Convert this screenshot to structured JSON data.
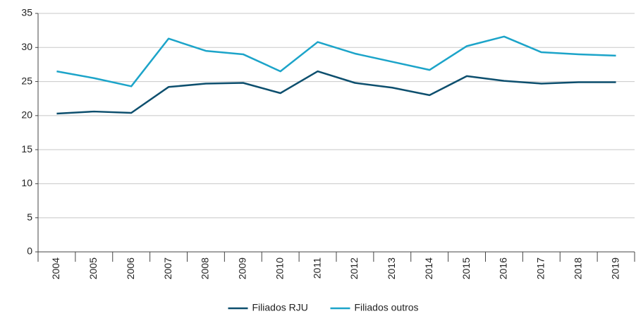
{
  "chart_data": {
    "type": "line",
    "categories": [
      "2004",
      "2005",
      "2006",
      "2007",
      "2008",
      "2009",
      "2010",
      "2011",
      "2012",
      "2013",
      "2014",
      "2015",
      "2016",
      "2017",
      "2018",
      "2019"
    ],
    "series": [
      {
        "name": "Filiados RJU",
        "color": "#0d4f6e",
        "values": [
          20.3,
          20.6,
          20.4,
          24.2,
          24.7,
          24.8,
          23.3,
          26.5,
          24.8,
          24.1,
          23.0,
          25.8,
          25.1,
          24.7,
          24.9,
          24.9
        ]
      },
      {
        "name": "Filiados outros",
        "color": "#1ca4c9",
        "values": [
          26.5,
          25.5,
          24.3,
          31.3,
          29.5,
          29.0,
          26.5,
          30.8,
          29.1,
          27.9,
          26.7,
          30.2,
          31.6,
          29.3,
          29.0,
          28.8
        ]
      }
    ],
    "ylim": [
      0,
      35
    ],
    "yticks": [
      0,
      5,
      10,
      15,
      20,
      25,
      30,
      35
    ],
    "grid": true,
    "legend": "bottom"
  }
}
